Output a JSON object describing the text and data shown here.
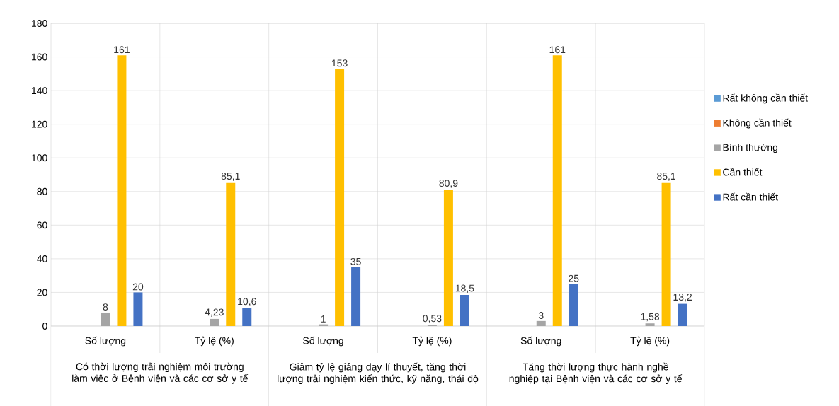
{
  "chart_data": {
    "type": "bar",
    "categories": [
      "Số lượng",
      "Tỷ lệ (%)",
      "Số lượng",
      "Tỷ lệ (%)",
      "Số lượng",
      "Tỷ lệ (%)"
    ],
    "series": [
      {
        "name": "Rất không cần thiết",
        "color": "#5b9bd5",
        "values": [
          null,
          null,
          null,
          null,
          null,
          null
        ]
      },
      {
        "name": "Không cần thiết",
        "color": "#ed7d31",
        "values": [
          null,
          null,
          null,
          null,
          null,
          null
        ]
      },
      {
        "name": "Bình thường",
        "color": "#a5a5a5",
        "values": [
          8,
          4.23,
          1,
          0.53,
          3,
          1.58
        ],
        "value_labels": [
          "8",
          "4,23",
          "1",
          "0,53",
          "3",
          "1,58"
        ]
      },
      {
        "name": "Cần thiết",
        "color": "#ffc000",
        "values": [
          161,
          85.1,
          153,
          80.9,
          161,
          85.1
        ],
        "value_labels": [
          "161",
          "85,1",
          "153",
          "80,9",
          "161",
          "85,1"
        ]
      },
      {
        "name": "Rất cần thiết",
        "color": "#4472c4",
        "values": [
          20,
          10.6,
          35,
          18.5,
          25,
          13.2
        ],
        "value_labels": [
          "20",
          "10,6",
          "35",
          "18,5",
          "25",
          "13,2"
        ]
      }
    ],
    "ylim": [
      0,
      180
    ],
    "yticks": [
      0,
      20,
      40,
      60,
      80,
      100,
      120,
      140,
      160,
      180
    ],
    "grid": "y",
    "legend": "right",
    "annotations": [
      "Có thời lượng trải nghiệm môi trường làm việc ở Bệnh viện và các cơ sở y tế",
      "Giảm tỷ lệ giảng dạy lí thuyết, tăng thời lượng trải nghiệm kiến thức, kỹ năng, thái độ",
      "Tăng thời lượng thực hành nghề nghiệp tại Bệnh viện và các cơ sở y tế"
    ]
  }
}
